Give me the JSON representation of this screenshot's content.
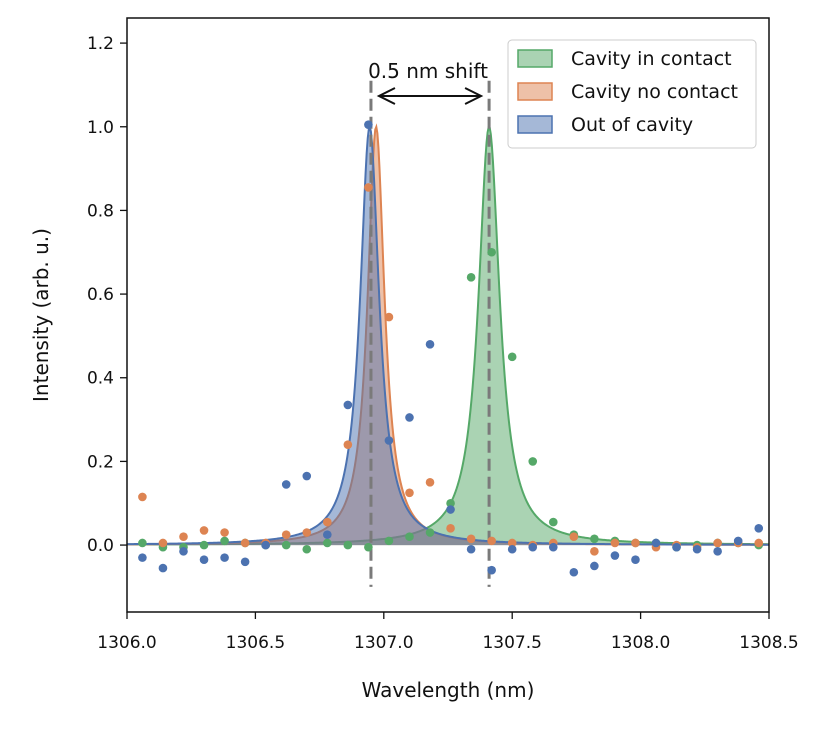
{
  "chart_data": {
    "type": "line",
    "title": "",
    "xlabel": "Wavelength (nm)",
    "ylabel": "Intensity (arb. u.)",
    "xlim": [
      1306.0,
      1308.5
    ],
    "ylim": [
      -0.16,
      1.26
    ],
    "x_ticks": [
      {
        "value": 1306.0,
        "label": "1306.0"
      },
      {
        "value": 1306.5,
        "label": "1306.5"
      },
      {
        "value": 1307.0,
        "label": "1307.0"
      },
      {
        "value": 1307.5,
        "label": "1307.5"
      },
      {
        "value": 1308.0,
        "label": "1308.0"
      },
      {
        "value": 1308.5,
        "label": "1308.5"
      }
    ],
    "y_ticks": [
      {
        "value": 0.0,
        "label": "0.0"
      },
      {
        "value": 0.2,
        "label": "0.2"
      },
      {
        "value": 0.4,
        "label": "0.4"
      },
      {
        "value": 0.6,
        "label": "0.6"
      },
      {
        "value": 0.8,
        "label": "0.8"
      },
      {
        "value": 1.0,
        "label": "1.0"
      },
      {
        "value": 1.2,
        "label": "1.2"
      }
    ],
    "grid": false,
    "legend_position": "top-right",
    "series": [
      {
        "name": "Cavity in contact",
        "color": "#55a868",
        "fit": {
          "model": "lorentzian",
          "center": 1307.41,
          "hwhm": 0.05,
          "amplitude": 1.0
        },
        "points": {
          "x": [
            1306.06,
            1306.14,
            1306.22,
            1306.3,
            1306.38,
            1306.46,
            1306.54,
            1306.62,
            1306.7,
            1306.78,
            1306.86,
            1306.94,
            1307.02,
            1307.1,
            1307.18,
            1307.26,
            1307.34,
            1307.42,
            1307.5,
            1307.58,
            1307.66,
            1307.74,
            1307.82,
            1307.9,
            1307.98,
            1308.06,
            1308.14,
            1308.22,
            1308.3,
            1308.38,
            1308.46
          ],
          "y": [
            0.005,
            -0.005,
            -0.005,
            0.0,
            0.01,
            0.005,
            0.0,
            0.0,
            -0.01,
            0.005,
            0.0,
            -0.005,
            0.01,
            0.02,
            0.03,
            0.1,
            0.64,
            0.7,
            0.45,
            0.2,
            0.055,
            0.025,
            0.015,
            0.01,
            0.005,
            0.005,
            -0.005,
            0.0,
            0.005,
            0.005,
            0.0
          ]
        }
      },
      {
        "name": "Cavity no contact",
        "color": "#dd8452",
        "fit": {
          "model": "lorentzian",
          "center": 1306.97,
          "hwhm": 0.04,
          "amplitude": 1.0
        },
        "points": {
          "x": [
            1306.06,
            1306.14,
            1306.22,
            1306.3,
            1306.38,
            1306.46,
            1306.54,
            1306.62,
            1306.7,
            1306.78,
            1306.86,
            1306.94,
            1307.02,
            1307.1,
            1307.18,
            1307.26,
            1307.34,
            1307.42,
            1307.5,
            1307.58,
            1307.66,
            1307.74,
            1307.82,
            1307.9,
            1307.98,
            1308.06,
            1308.14,
            1308.22,
            1308.3,
            1308.38,
            1308.46
          ],
          "y": [
            0.115,
            0.005,
            0.02,
            0.035,
            0.03,
            0.005,
            0.005,
            0.025,
            0.03,
            0.055,
            0.24,
            0.855,
            0.545,
            0.125,
            0.15,
            0.04,
            0.015,
            0.01,
            0.005,
            0.0,
            0.005,
            0.02,
            -0.015,
            0.005,
            0.005,
            -0.005,
            0.0,
            -0.005,
            0.005,
            0.005,
            0.005
          ]
        }
      },
      {
        "name": "Out of cavity",
        "color": "#4c72b0",
        "fit": {
          "model": "lorentzian",
          "center": 1306.945,
          "hwhm": 0.045,
          "amplitude": 1.0
        },
        "points": {
          "x": [
            1306.06,
            1306.14,
            1306.22,
            1306.3,
            1306.38,
            1306.46,
            1306.54,
            1306.62,
            1306.7,
            1306.78,
            1306.86,
            1306.94,
            1307.02,
            1307.1,
            1307.18,
            1307.26,
            1307.34,
            1307.42,
            1307.5,
            1307.58,
            1307.66,
            1307.74,
            1307.82,
            1307.9,
            1307.98,
            1308.06,
            1308.14,
            1308.22,
            1308.3,
            1308.38,
            1308.46
          ],
          "y": [
            -0.03,
            -0.055,
            -0.015,
            -0.035,
            -0.03,
            -0.04,
            0.0,
            0.145,
            0.165,
            0.025,
            0.335,
            1.005,
            0.25,
            0.305,
            0.48,
            0.085,
            -0.01,
            -0.06,
            -0.01,
            -0.005,
            -0.005,
            -0.065,
            -0.05,
            -0.025,
            -0.035,
            0.005,
            -0.005,
            -0.01,
            -0.015,
            0.01,
            0.04
          ]
        }
      }
    ],
    "annotations": {
      "shift_text": "0.5 nm shift",
      "marker_lines": [
        1306.95,
        1307.41
      ]
    }
  }
}
